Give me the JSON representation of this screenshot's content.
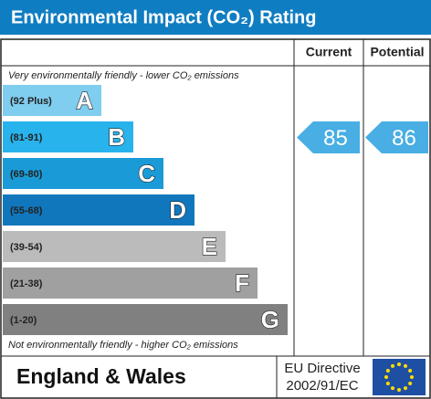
{
  "header": {
    "title": "Environmental Impact (CO₂) Rating"
  },
  "columns": [
    "Current",
    "Potential"
  ],
  "notes": {
    "top": "Very environmentally friendly - lower CO₂ emissions",
    "bottom": "Not environmentally friendly - higher CO₂ emissions"
  },
  "bands": [
    {
      "range": "(92 Plus)",
      "letter": "A",
      "color": "#7fcdef"
    },
    {
      "range": "(81-91)",
      "letter": "B",
      "color": "#29b3ec"
    },
    {
      "range": "(69-80)",
      "letter": "C",
      "color": "#1a9bd7"
    },
    {
      "range": "(55-68)",
      "letter": "D",
      "color": "#1077bd"
    },
    {
      "range": "(39-54)",
      "letter": "E",
      "color": "#bbbbbb"
    },
    {
      "range": "(21-38)",
      "letter": "F",
      "color": "#a0a0a0"
    },
    {
      "range": "(1-20)",
      "letter": "G",
      "color": "#808080"
    }
  ],
  "current": {
    "value": 85,
    "color": "#48aee3"
  },
  "potential": {
    "value": 86,
    "color": "#48aee3"
  },
  "footer": {
    "region": "England & Wales",
    "directive_line1": "EU Directive",
    "directive_line2": "2002/91/EC"
  }
}
